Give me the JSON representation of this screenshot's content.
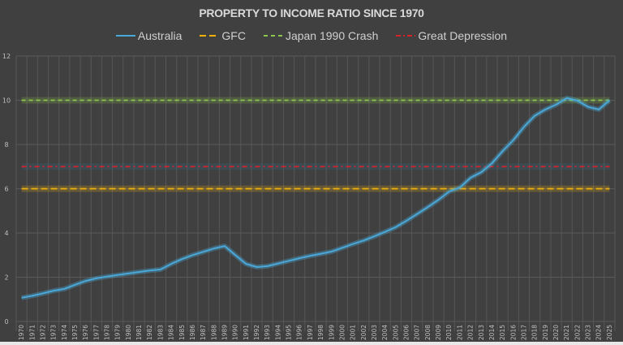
{
  "chart_data": {
    "type": "line",
    "title": "PROPERTY TO INCOME RATIO SINCE 1970",
    "xlabel": "",
    "ylabel": "",
    "ylim": [
      0,
      12
    ],
    "yticks": [
      0,
      2,
      4,
      6,
      8,
      10,
      12
    ],
    "grid": true,
    "legend_position": "top",
    "x": [
      1970,
      1971,
      1972,
      1973,
      1974,
      1975,
      1976,
      1977,
      1978,
      1979,
      1980,
      1981,
      1982,
      1983,
      1984,
      1985,
      1986,
      1987,
      1988,
      1989,
      1990,
      1991,
      1992,
      1993,
      1994,
      1995,
      1996,
      1997,
      1998,
      1999,
      2000,
      2001,
      2002,
      2003,
      2004,
      2005,
      2006,
      2007,
      2008,
      2009,
      2010,
      2011,
      2012,
      2013,
      2014,
      2015,
      2016,
      2017,
      2018,
      2019,
      2020,
      2021,
      2022,
      2023,
      2024,
      2025
    ],
    "series": [
      {
        "name": "Australia",
        "color": "#4aa8d8",
        "style": "solid",
        "values": [
          1.07,
          1.16,
          1.27,
          1.39,
          1.47,
          1.66,
          1.83,
          1.95,
          2.03,
          2.1,
          2.17,
          2.24,
          2.3,
          2.35,
          2.6,
          2.82,
          3.0,
          3.15,
          3.3,
          3.41,
          3.0,
          2.6,
          2.46,
          2.5,
          2.62,
          2.74,
          2.86,
          2.97,
          3.06,
          3.16,
          3.33,
          3.5,
          3.66,
          3.85,
          4.05,
          4.26,
          4.55,
          4.86,
          5.17,
          5.5,
          5.87,
          6.05,
          6.5,
          6.75,
          7.15,
          7.7,
          8.2,
          8.8,
          9.3,
          9.58,
          9.8,
          10.1,
          9.98,
          9.7,
          9.58,
          10.0
        ]
      },
      {
        "name": "GFC",
        "color": "#f2b10b",
        "style": "dashed",
        "constant": 6
      },
      {
        "name": "Japan 1990 Crash",
        "color": "#8cc64a",
        "style": "dashed",
        "constant": 10
      },
      {
        "name": "Great Depression",
        "color": "#d8222a",
        "style": "dash-dot",
        "constant": 7
      }
    ]
  },
  "legend": [
    {
      "label": "Australia",
      "color": "#4aa8d8",
      "dash": "none"
    },
    {
      "label": "GFC",
      "color": "#f2b10b",
      "dash": "8 4"
    },
    {
      "label": "Japan 1990 Crash",
      "color": "#8cc64a",
      "dash": "5 4"
    },
    {
      "label": "Great Depression",
      "color": "#d8222a",
      "dash": "6 3 2 3"
    }
  ]
}
